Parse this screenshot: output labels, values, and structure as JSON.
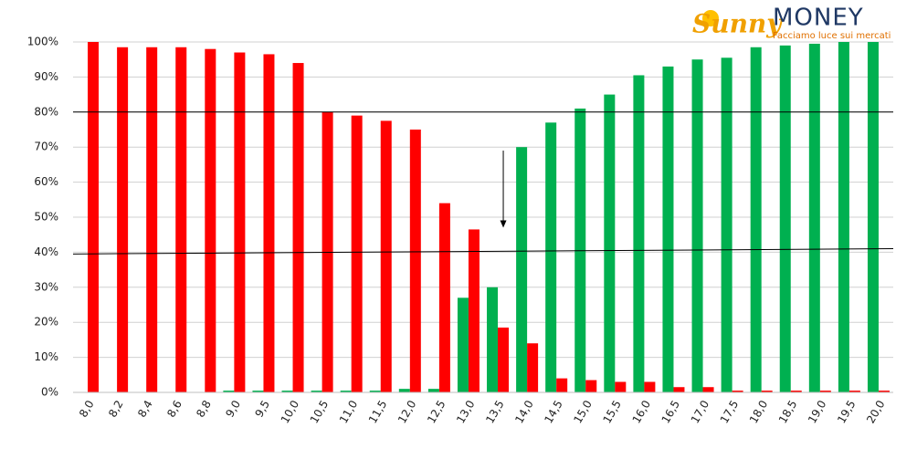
{
  "chart_data": {
    "type": "bar",
    "logo": {
      "brand": "Sunny",
      "name": "MONEY",
      "tagline": "Facciamo luce sui mercati"
    },
    "categories": [
      "8,0",
      "8,2",
      "8,4",
      "8,6",
      "8,8",
      "9,0",
      "9,5",
      "10,0",
      "10,5",
      "11,0",
      "11,5",
      "12,0",
      "12,5",
      "13,0",
      "13,5",
      "14,0",
      "14,5",
      "15,0",
      "15,5",
      "16,0",
      "16,5",
      "17,0",
      "17,5",
      "18,0",
      "18,5",
      "19,0",
      "19,5",
      "20,0"
    ],
    "series": [
      {
        "color": "#00b050",
        "values": [
          0,
          0,
          0,
          0,
          0,
          0.5,
          0.5,
          0.5,
          0.5,
          0.5,
          0.5,
          1,
          1,
          27,
          30,
          70,
          77,
          81,
          85,
          90.5,
          93,
          95,
          95.5,
          98.5,
          99,
          99.5,
          100,
          100
        ]
      },
      {
        "color": "#ff0000",
        "values": [
          100,
          98.5,
          98.5,
          98.5,
          98,
          97,
          96.5,
          94,
          80,
          79,
          77.5,
          75,
          54,
          46.5,
          18.5,
          14,
          4,
          3.5,
          3,
          3,
          1.5,
          1.5,
          0.5,
          0.5,
          0.5,
          0.5,
          0.5,
          0.5
        ]
      }
    ],
    "ylim": [
      0,
      100
    ],
    "yticks": [
      {
        "value": 0,
        "label": "0%"
      },
      {
        "value": 10,
        "label": "10%"
      },
      {
        "value": 20,
        "label": "20%"
      },
      {
        "value": 30,
        "label": "30%"
      },
      {
        "value": 40,
        "label": "40%"
      },
      {
        "value": 50,
        "label": "50%"
      },
      {
        "value": 60,
        "label": "60%"
      },
      {
        "value": 70,
        "label": "70%"
      },
      {
        "value": 80,
        "label": "80%"
      },
      {
        "value": 90,
        "label": "90%"
      },
      {
        "value": 100,
        "label": "100%"
      }
    ],
    "grid": true,
    "reference_lines": [
      {
        "y_start": 80,
        "y_end": 80
      },
      {
        "y_start": 39.5,
        "y_end": 41
      }
    ],
    "arrow": {
      "category_index": 14,
      "from": 69,
      "to": 47
    }
  }
}
